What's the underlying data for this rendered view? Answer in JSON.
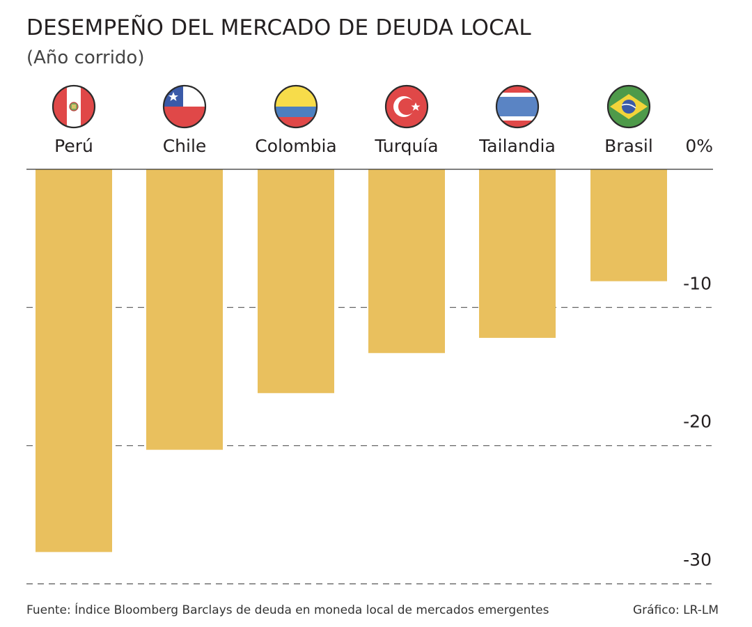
{
  "chart_data": {
    "type": "bar",
    "title": "DESEMPEÑO DEL MERCADO DE DEUDA LOCAL",
    "subtitle": "(Año corrido)",
    "categories": [
      "Perú",
      "Chile",
      "Colombia",
      "Turquía",
      "Tailandia",
      "Brasil"
    ],
    "flags": [
      "peru-flag-icon",
      "chile-flag-icon",
      "colombia-flag-icon",
      "turkey-flag-icon",
      "thailand-flag-icon",
      "brazil-flag-icon"
    ],
    "values": [
      -27.7,
      -20.3,
      -16.2,
      -13.3,
      -12.2,
      -8.1
    ],
    "ylim": [
      -30,
      0
    ],
    "yticks": [
      {
        "value": 0,
        "label": "0%"
      },
      {
        "value": -10,
        "label": "-10"
      },
      {
        "value": -20,
        "label": "-20"
      },
      {
        "value": -30,
        "label": "-30"
      }
    ],
    "bar_color": "#e9c05e",
    "source": "Fuente:  Índice Bloomberg Barclays de deuda en moneda local de mercados emergentes",
    "credit": "Gráfico: LR-LM"
  }
}
